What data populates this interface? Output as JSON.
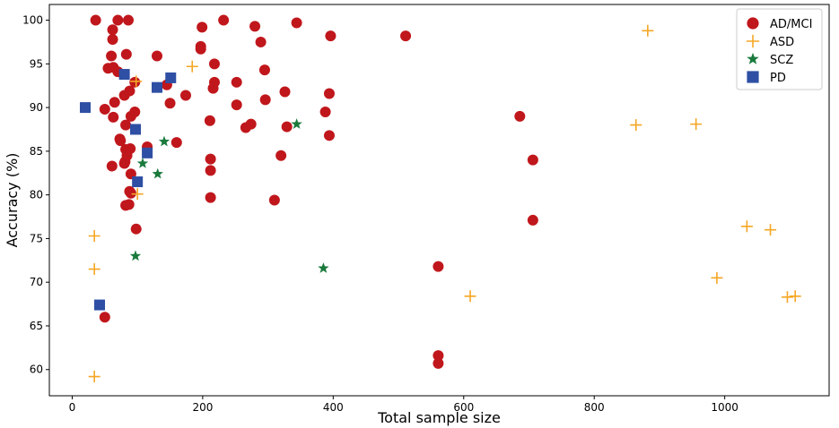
{
  "chart_data": {
    "type": "scatter",
    "xlabel": "Total sample size",
    "ylabel": "Accuracy (%)",
    "xlim": [
      -35,
      1160
    ],
    "ylim": [
      57,
      101.8
    ],
    "xticks": [
      0,
      200,
      400,
      600,
      800,
      1000
    ],
    "yticks": [
      60,
      65,
      70,
      75,
      80,
      85,
      90,
      95,
      100
    ],
    "grid": false,
    "legend_position": "top-right",
    "series": [
      {
        "name": "AD/MCI",
        "marker": "circle",
        "color": "#c0171c",
        "points": [
          [
            36,
            100
          ],
          [
            70,
            100
          ],
          [
            86,
            100
          ],
          [
            232,
            100
          ],
          [
            344,
            99.7
          ],
          [
            280,
            99.3
          ],
          [
            199,
            99.2
          ],
          [
            396,
            98.2
          ],
          [
            511,
            98.2
          ],
          [
            62,
            98.9
          ],
          [
            62,
            97.8
          ],
          [
            289,
            97.5
          ],
          [
            197,
            97
          ],
          [
            197,
            96.7
          ],
          [
            83,
            96.1
          ],
          [
            130,
            95.9
          ],
          [
            60,
            95.9
          ],
          [
            218,
            95
          ],
          [
            55,
            94.5
          ],
          [
            63,
            94.6
          ],
          [
            70,
            94.1
          ],
          [
            295,
            94.3
          ],
          [
            252,
            92.9
          ],
          [
            218,
            92.9
          ],
          [
            216,
            92.2
          ],
          [
            96,
            92.9
          ],
          [
            145,
            92.6
          ],
          [
            88,
            91.9
          ],
          [
            80,
            91.4
          ],
          [
            326,
            91.8
          ],
          [
            394,
            91.6
          ],
          [
            174,
            91.4
          ],
          [
            65,
            90.6
          ],
          [
            296,
            90.9
          ],
          [
            150,
            90.5
          ],
          [
            252,
            90.3
          ],
          [
            50,
            89.8
          ],
          [
            96,
            89.5
          ],
          [
            388,
            89.5
          ],
          [
            686,
            89
          ],
          [
            90,
            89
          ],
          [
            63,
            88.9
          ],
          [
            211,
            88.5
          ],
          [
            274,
            88.1
          ],
          [
            82,
            88
          ],
          [
            266,
            87.7
          ],
          [
            329,
            87.8
          ],
          [
            394,
            86.8
          ],
          [
            73,
            86.4
          ],
          [
            74,
            86.2
          ],
          [
            160,
            86
          ],
          [
            115,
            85.5
          ],
          [
            89,
            85.3
          ],
          [
            82,
            85.2
          ],
          [
            84,
            84.5
          ],
          [
            320,
            84.5
          ],
          [
            706,
            84
          ],
          [
            212,
            84.1
          ],
          [
            81,
            83.8
          ],
          [
            80,
            83.6
          ],
          [
            61,
            83.3
          ],
          [
            212,
            82.8
          ],
          [
            90,
            82.4
          ],
          [
            88,
            80.4
          ],
          [
            90,
            80.2
          ],
          [
            212,
            79.7
          ],
          [
            310,
            79.4
          ],
          [
            82,
            78.8
          ],
          [
            87,
            78.9
          ],
          [
            706,
            77.1
          ],
          [
            98,
            76.1
          ],
          [
            561,
            71.8
          ],
          [
            50,
            66
          ],
          [
            561,
            61.6
          ],
          [
            561,
            60.7
          ]
        ]
      },
      {
        "name": "ASD",
        "marker": "plus",
        "color": "#f5a623",
        "points": [
          [
            882,
            98.8
          ],
          [
            184,
            94.7
          ],
          [
            98,
            93
          ],
          [
            864,
            88
          ],
          [
            956,
            88.1
          ],
          [
            100,
            80.1
          ],
          [
            1034,
            76.4
          ],
          [
            1070,
            76
          ],
          [
            34,
            75.3
          ],
          [
            34,
            71.5
          ],
          [
            988,
            70.5
          ],
          [
            610,
            68.4
          ],
          [
            1096,
            68.3
          ],
          [
            1108,
            68.4
          ],
          [
            34,
            59.2
          ]
        ]
      },
      {
        "name": "SCZ",
        "marker": "star",
        "color": "#1a7a3c",
        "points": [
          [
            344,
            88.1
          ],
          [
            141,
            86.1
          ],
          [
            108,
            83.6
          ],
          [
            131,
            82.4
          ],
          [
            97,
            73
          ],
          [
            385,
            71.6
          ]
        ]
      },
      {
        "name": "PD",
        "marker": "square",
        "color": "#2e4fa3",
        "points": [
          [
            20,
            90
          ],
          [
            80,
            93.8
          ],
          [
            151,
            93.4
          ],
          [
            130,
            92.3
          ],
          [
            97,
            87.5
          ],
          [
            115,
            84.8
          ],
          [
            100,
            81.5
          ],
          [
            42,
            67.4
          ]
        ]
      }
    ]
  }
}
